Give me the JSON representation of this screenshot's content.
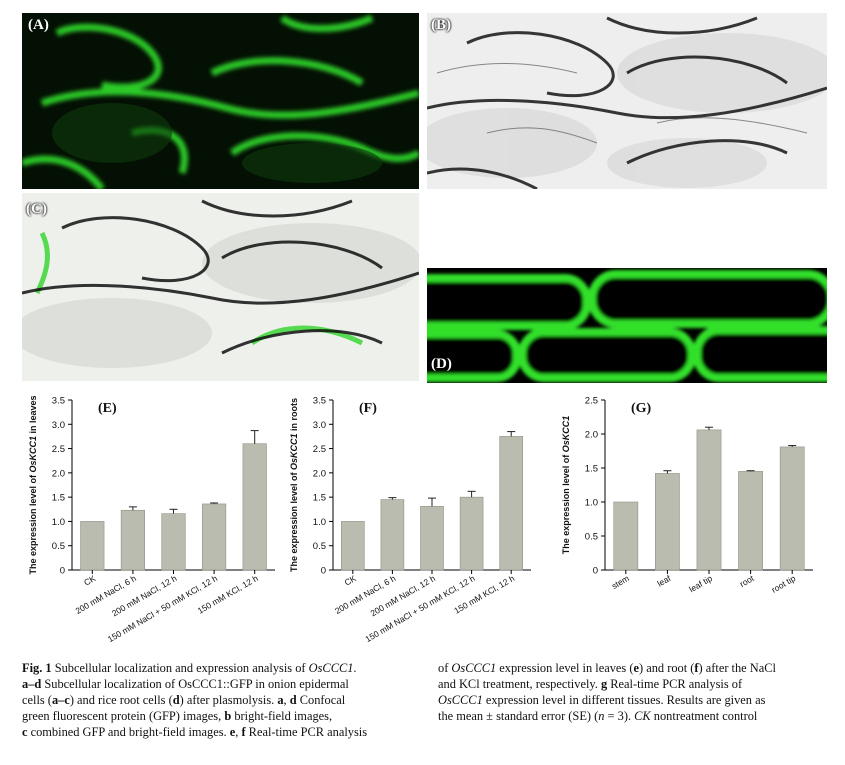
{
  "panels": {
    "a": {
      "label": "(A)"
    },
    "b": {
      "label": "(B)"
    },
    "c": {
      "label": "(C)"
    },
    "d": {
      "label": "(D)"
    }
  },
  "colors": {
    "bar": "#b9bcae",
    "gfp": "#35e02c"
  },
  "chart_data": [
    {
      "type": "bar",
      "panel_label": "(E)",
      "ylabel_prefix": "The expression level of ",
      "ylabel_gene": "OsKCC1",
      "ylabel_suffix": " in leaves",
      "categories": [
        "CK",
        "200 mM NaCl, 6 h",
        "200 mM NaCl, 12 h",
        "150 mM NaCl + 50 mM KCl, 12 h",
        "150 mM KCl, 12 h"
      ],
      "values": [
        1.0,
        1.23,
        1.16,
        1.36,
        2.6
      ],
      "errors": [
        0,
        0.07,
        0.09,
        0.02,
        0.27
      ],
      "ylim": [
        0,
        3.5
      ],
      "yticks": [
        "0",
        "0.5",
        "1.0",
        "1.5",
        "2.0",
        "2.5",
        "3.0",
        "3.5"
      ]
    },
    {
      "type": "bar",
      "panel_label": "(F)",
      "ylabel_prefix": "The expression level of ",
      "ylabel_gene": "OsKCC1",
      "ylabel_suffix": " in roots",
      "categories": [
        "CK",
        "200 mM NaCl, 6 h",
        "200 mM NaCl, 12 h",
        "150 mM NaCl + 50 mM KCl, 12 h",
        "150 mM KCl, 12 h"
      ],
      "values": [
        1.0,
        1.45,
        1.31,
        1.5,
        2.75
      ],
      "errors": [
        0,
        0.04,
        0.17,
        0.12,
        0.1
      ],
      "ylim": [
        0,
        3.5
      ],
      "yticks": [
        "0",
        "0.5",
        "1.0",
        "1.5",
        "2.0",
        "2.5",
        "3.0",
        "3.5"
      ]
    },
    {
      "type": "bar",
      "panel_label": "(G)",
      "ylabel_prefix": "The expression level of ",
      "ylabel_gene": "OsKCC1",
      "ylabel_suffix": "",
      "categories": [
        "stem",
        "leaf",
        "leaf tip",
        "root",
        "root tip"
      ],
      "values": [
        1.0,
        1.42,
        2.06,
        1.45,
        1.81
      ],
      "errors": [
        0,
        0.04,
        0.04,
        0.01,
        0.02
      ],
      "ylim": [
        0,
        2.5
      ],
      "yticks": [
        "0",
        "0.5",
        "1.0",
        "1.5",
        "2.0",
        "2.5"
      ]
    }
  ],
  "caption": {
    "left": [
      [
        {
          "t": "Fig. 1",
          "s": "b"
        },
        {
          "t": " Subcellular localization and expression analysis of "
        },
        {
          "t": "OsCCC1",
          "s": "i"
        },
        {
          "t": "."
        }
      ],
      [
        {
          "t": "a–d",
          "s": "b"
        },
        {
          "t": " Subcellular localization of OsCCC1::GFP in onion epidermal"
        }
      ],
      [
        {
          "t": "cells ("
        },
        {
          "t": "a–c",
          "s": "b"
        },
        {
          "t": ") and rice root cells ("
        },
        {
          "t": "d",
          "s": "b"
        },
        {
          "t": ") after plasmolysis. "
        },
        {
          "t": "a",
          "s": "b"
        },
        {
          "t": ", "
        },
        {
          "t": "d",
          "s": "b"
        },
        {
          "t": " Confocal"
        }
      ],
      [
        {
          "t": "green fluorescent protein (GFP) images, "
        },
        {
          "t": "b",
          "s": "b"
        },
        {
          "t": " bright-field images,"
        }
      ],
      [
        {
          "t": "c",
          "s": "b"
        },
        {
          "t": " combined GFP and bright-field images. "
        },
        {
          "t": "e",
          "s": "b"
        },
        {
          "t": ", "
        },
        {
          "t": "f",
          "s": "b"
        },
        {
          "t": " Real-time PCR analysis"
        }
      ]
    ],
    "right": [
      [
        {
          "t": "of "
        },
        {
          "t": "OsCCC1",
          "s": "i"
        },
        {
          "t": " expression level in leaves ("
        },
        {
          "t": "e",
          "s": "b"
        },
        {
          "t": ") and root ("
        },
        {
          "t": "f",
          "s": "b"
        },
        {
          "t": ") after the NaCl"
        }
      ],
      [
        {
          "t": "and KCl treatment, respectively. "
        },
        {
          "t": "g",
          "s": "b"
        },
        {
          "t": " Real-time PCR analysis of"
        }
      ],
      [
        {
          "t": "OsCCC1",
          "s": "i"
        },
        {
          "t": " expression level in different tissues. Results are given as"
        }
      ],
      [
        {
          "t": "the mean ± standard error (SE) ("
        },
        {
          "t": "n",
          "s": "i"
        },
        {
          "t": " = 3). "
        },
        {
          "t": "CK",
          "s": "i"
        },
        {
          "t": " nontreatment control"
        }
      ]
    ]
  }
}
